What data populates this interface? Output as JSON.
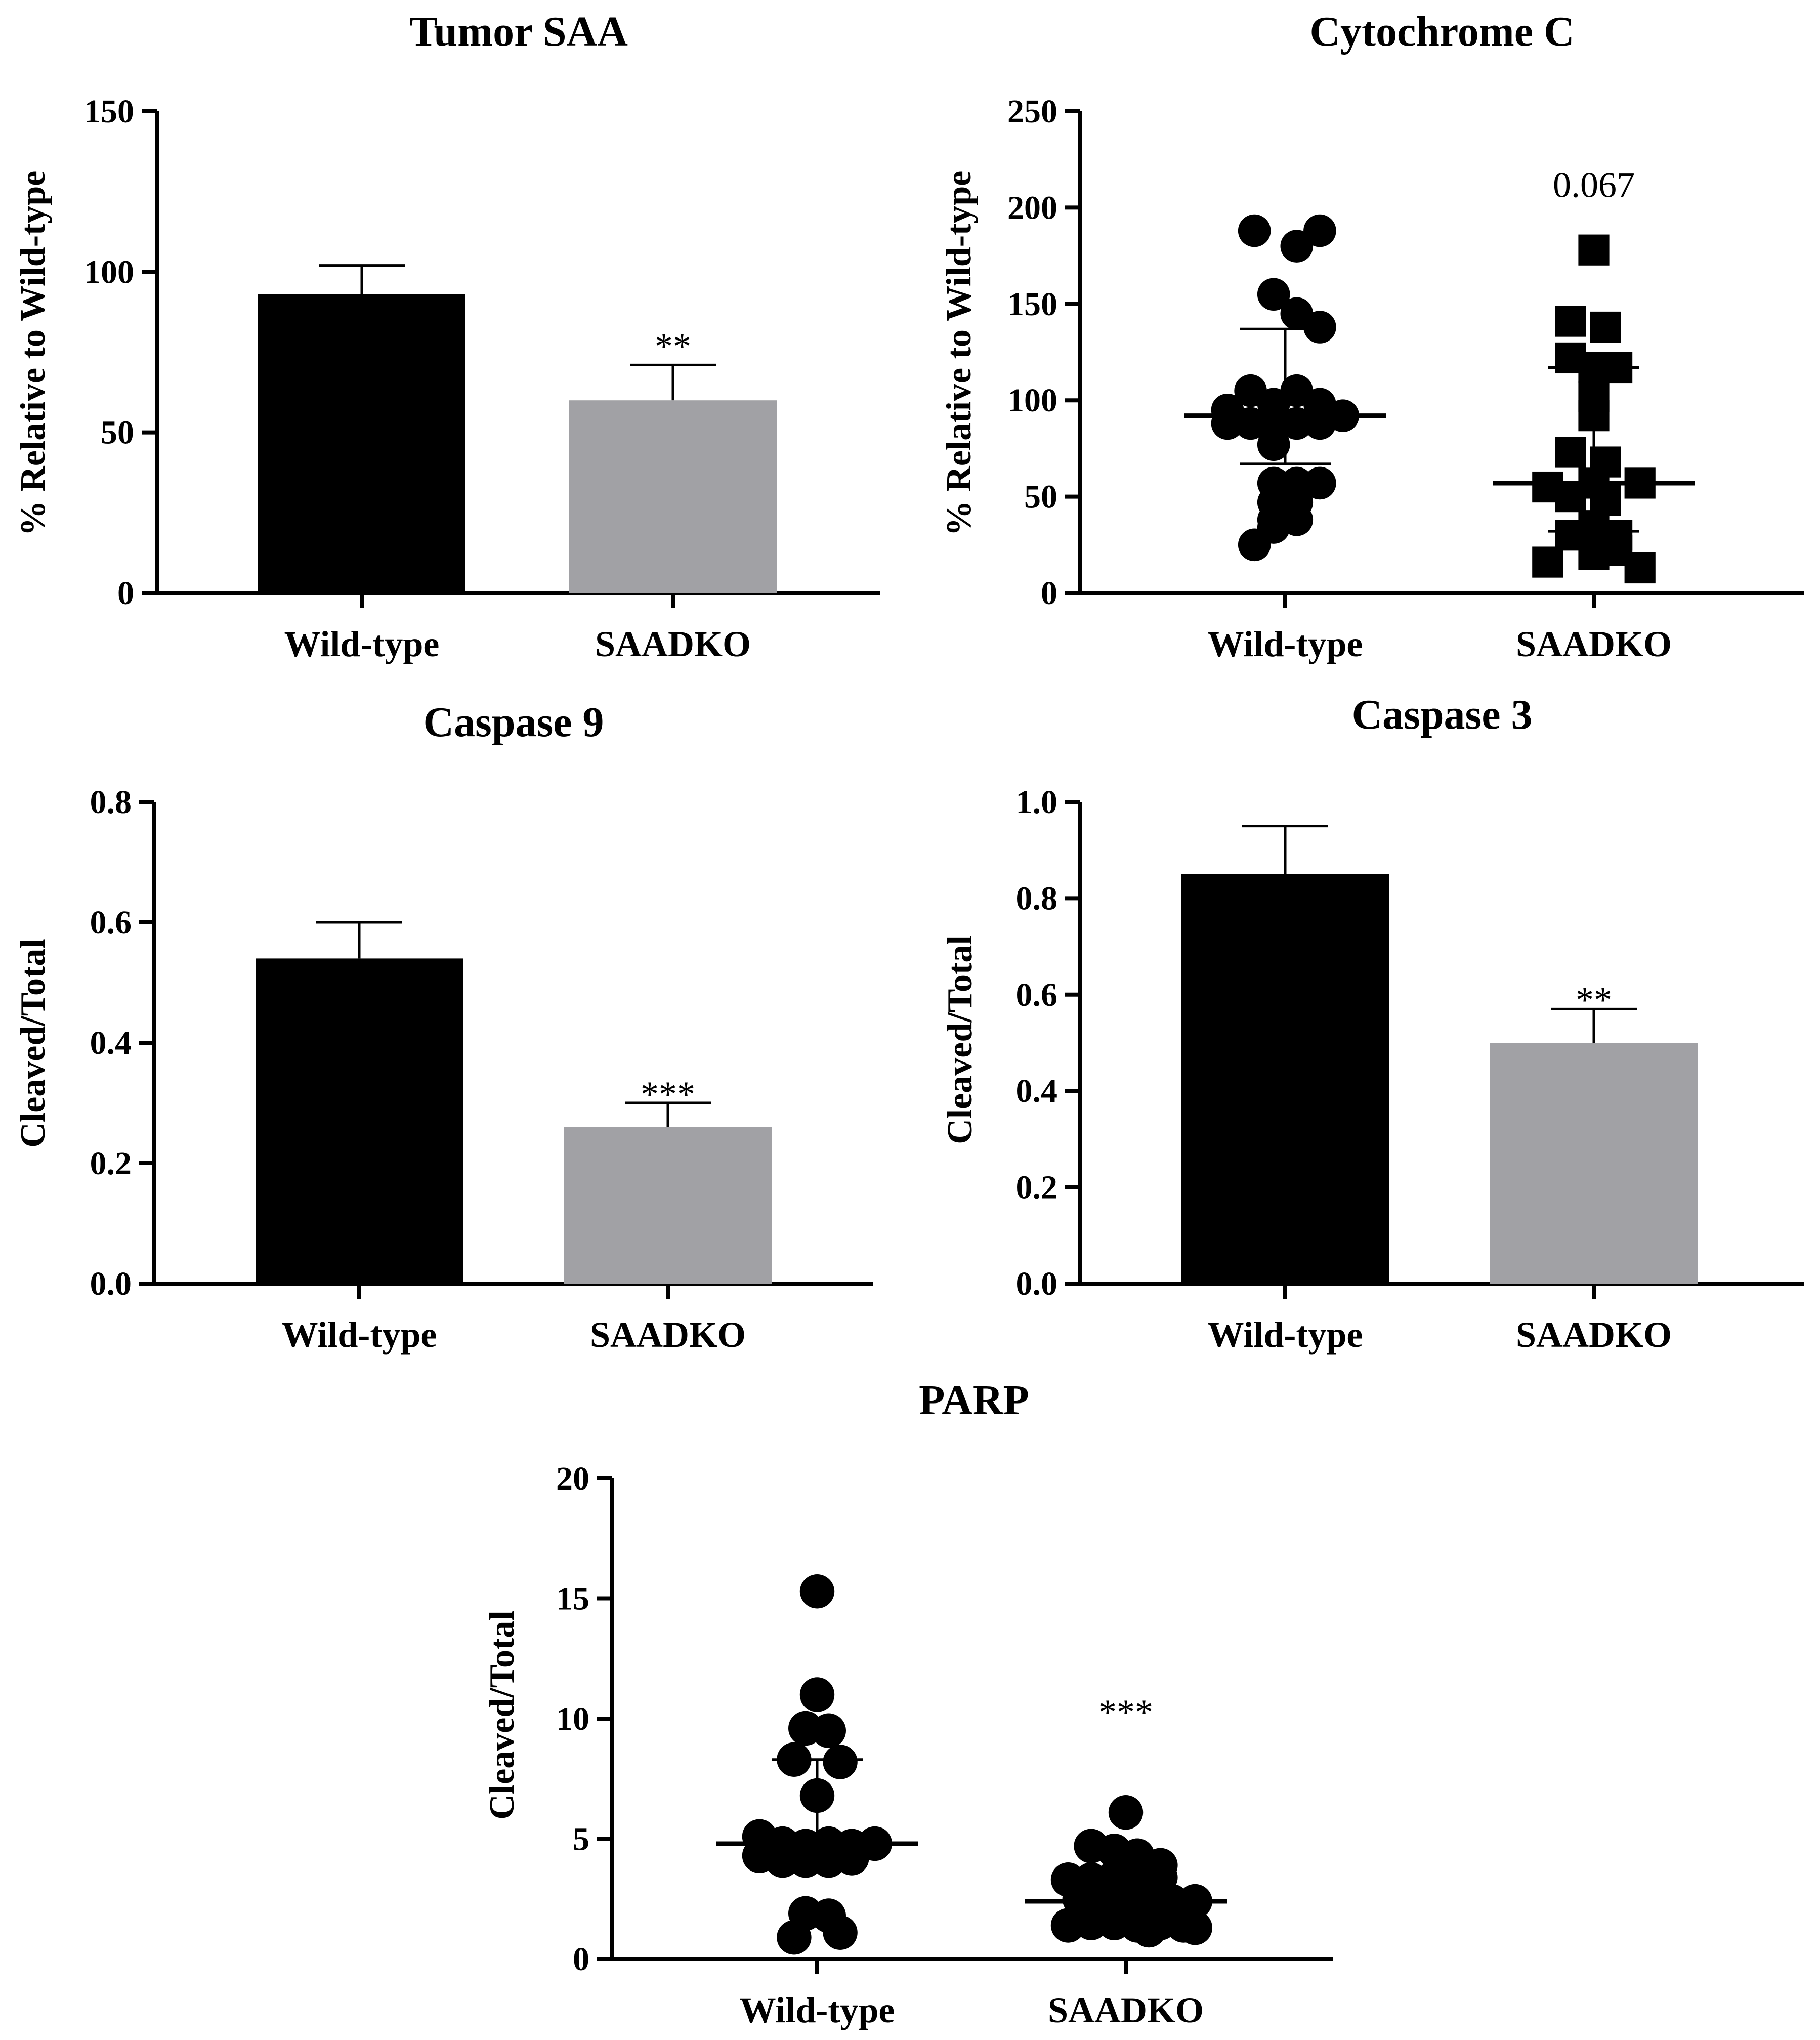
{
  "chart_data": [
    {
      "id": "tumor-saa",
      "type": "bar",
      "title": "Tumor SAA",
      "ylabel": "% Relative to Wild-type",
      "categories": [
        "Wild-type",
        "SAADKO"
      ],
      "values": [
        93,
        60
      ],
      "error_upper": [
        102,
        71
      ],
      "bar_colors": [
        "#000000",
        "#a1a1a5"
      ],
      "ylim": [
        0,
        150
      ],
      "yticks": [
        0,
        50,
        100,
        150
      ],
      "ytick_labels": [
        "0",
        "50",
        "100",
        "150"
      ],
      "annotations": [
        {
          "category": "SAADKO",
          "text": "**",
          "y": 77
        }
      ]
    },
    {
      "id": "cytochrome-c",
      "type": "scatter",
      "title": "Cytochrome C",
      "ylabel": "% Relative to Wild-type",
      "categories": [
        "Wild-type",
        "SAADKO"
      ],
      "markers": [
        "circle",
        "square"
      ],
      "ylim": [
        0,
        250
      ],
      "yticks": [
        0,
        50,
        100,
        150,
        200,
        250
      ],
      "ytick_labels": [
        "0",
        "50",
        "100",
        "150",
        "200",
        "250"
      ],
      "series": [
        {
          "name": "Wild-type",
          "median": 92,
          "q1": 67,
          "q3": 137,
          "points": [
            [
              -0.16,
              188
            ],
            [
              0.06,
              180
            ],
            [
              0.18,
              188
            ],
            [
              -0.06,
              155
            ],
            [
              0.06,
              145
            ],
            [
              0.18,
              138
            ],
            [
              -0.3,
              95
            ],
            [
              -0.18,
              105
            ],
            [
              -0.06,
              98
            ],
            [
              0.06,
              105
            ],
            [
              0.18,
              98
            ],
            [
              0.3,
              92
            ],
            [
              -0.3,
              88
            ],
            [
              -0.18,
              88
            ],
            [
              -0.06,
              88
            ],
            [
              0.06,
              88
            ],
            [
              0.18,
              88
            ],
            [
              -0.06,
              77
            ],
            [
              -0.06,
              57
            ],
            [
              0.06,
              57
            ],
            [
              0.18,
              57
            ],
            [
              -0.06,
              47
            ],
            [
              0.06,
              47
            ],
            [
              -0.06,
              38
            ],
            [
              0.06,
              38
            ],
            [
              -0.06,
              34
            ],
            [
              -0.16,
              25
            ]
          ]
        },
        {
          "name": "SAADKO",
          "median": 57,
          "q1": 32,
          "q3": 117,
          "points": [
            [
              0,
              178
            ],
            [
              -0.12,
              141
            ],
            [
              0.06,
              138
            ],
            [
              -0.12,
              122
            ],
            [
              0,
              117
            ],
            [
              0.12,
              117
            ],
            [
              0,
              102
            ],
            [
              0,
              92
            ],
            [
              -0.12,
              73
            ],
            [
              0.06,
              68
            ],
            [
              -0.24,
              55
            ],
            [
              0,
              57
            ],
            [
              0.24,
              57
            ],
            [
              -0.12,
              50
            ],
            [
              0.06,
              48
            ],
            [
              0,
              35
            ],
            [
              -0.12,
              30
            ],
            [
              0.12,
              30
            ],
            [
              -0.24,
              16
            ],
            [
              0,
              20
            ],
            [
              0.12,
              22
            ],
            [
              0.24,
              13
            ]
          ]
        }
      ],
      "annotations": [
        {
          "category": "SAADKO",
          "text": "0.067",
          "y": 212
        }
      ]
    },
    {
      "id": "caspase-9",
      "type": "bar",
      "title": "Caspase 9",
      "ylabel": "Cleaved/Total",
      "categories": [
        "Wild-type",
        "SAADKO"
      ],
      "values": [
        0.54,
        0.26
      ],
      "error_upper": [
        0.6,
        0.3
      ],
      "bar_colors": [
        "#000000",
        "#a1a1a5"
      ],
      "ylim": [
        0,
        0.8
      ],
      "yticks": [
        0,
        0.2,
        0.4,
        0.6,
        0.8
      ],
      "ytick_labels": [
        "0.0",
        "0.2",
        "0.4",
        "0.6",
        "0.8"
      ],
      "annotations": [
        {
          "category": "SAADKO",
          "text": "***",
          "y": 0.315
        }
      ]
    },
    {
      "id": "caspase-3",
      "type": "bar",
      "title": "Caspase 3",
      "ylabel": "Cleaved/Total",
      "categories": [
        "Wild-type",
        "SAADKO"
      ],
      "values": [
        0.85,
        0.5
      ],
      "error_upper": [
        0.95,
        0.57
      ],
      "bar_colors": [
        "#000000",
        "#a1a1a5"
      ],
      "ylim": [
        0,
        1.0
      ],
      "yticks": [
        0,
        0.2,
        0.4,
        0.6,
        0.8,
        1.0
      ],
      "ytick_labels": [
        "0.0",
        "0.2",
        "0.4",
        "0.6",
        "0.8",
        "1.0"
      ],
      "annotations": [
        {
          "category": "SAADKO",
          "text": "**",
          "y": 0.59
        }
      ]
    },
    {
      "id": "parp",
      "type": "scatter",
      "title": "PARP",
      "ylabel": "Cleaved/Total",
      "categories": [
        "Wild-type",
        "SAADKO"
      ],
      "markers": [
        "circle",
        "circle"
      ],
      "ylim": [
        0,
        20
      ],
      "yticks": [
        0,
        5,
        10,
        15,
        20
      ],
      "ytick_labels": [
        "0",
        "5",
        "10",
        "15",
        "20"
      ],
      "series": [
        {
          "name": "Wild-type",
          "median": 4.8,
          "q1": 4.1,
          "q3": 8.3,
          "points": [
            [
              0,
              15.3
            ],
            [
              0,
              11.0
            ],
            [
              -0.06,
              9.6
            ],
            [
              0.06,
              9.5
            ],
            [
              -0.12,
              8.3
            ],
            [
              0.12,
              8.2
            ],
            [
              0,
              6.8
            ],
            [
              -0.3,
              5.1
            ],
            [
              -0.18,
              4.8
            ],
            [
              -0.06,
              4.7
            ],
            [
              0.06,
              4.8
            ],
            [
              0.18,
              4.7
            ],
            [
              0.3,
              4.8
            ],
            [
              -0.3,
              4.3
            ],
            [
              -0.18,
              4.1
            ],
            [
              -0.06,
              4.1
            ],
            [
              0.06,
              4.1
            ],
            [
              0.18,
              4.2
            ],
            [
              -0.06,
              1.9
            ],
            [
              0.06,
              1.8
            ],
            [
              -0.12,
              0.9
            ],
            [
              0.12,
              1.1
            ]
          ]
        },
        {
          "name": "SAADKO",
          "median": 2.4,
          "q1": 1.6,
          "q3": 3.7,
          "points": [
            [
              0,
              6.1
            ],
            [
              -0.18,
              4.7
            ],
            [
              -0.06,
              4.5
            ],
            [
              0.06,
              4.3
            ],
            [
              0.18,
              3.9
            ],
            [
              -0.3,
              3.3
            ],
            [
              -0.18,
              3.3
            ],
            [
              -0.06,
              3.4
            ],
            [
              0.06,
              3.5
            ],
            [
              0.18,
              3.4
            ],
            [
              -0.24,
              2.5
            ],
            [
              -0.12,
              2.4
            ],
            [
              0,
              2.4
            ],
            [
              0.12,
              2.4
            ],
            [
              0.24,
              2.4
            ],
            [
              0.36,
              2.4
            ],
            [
              -0.3,
              1.4
            ],
            [
              -0.18,
              1.5
            ],
            [
              -0.06,
              1.5
            ],
            [
              0.06,
              1.4
            ],
            [
              0.18,
              1.5
            ],
            [
              0.3,
              1.4
            ],
            [
              0.12,
              1.2
            ],
            [
              0.36,
              1.3
            ]
          ]
        }
      ],
      "annotations": [
        {
          "category": "SAADKO",
          "text": "***",
          "y": 10.3
        }
      ]
    }
  ]
}
